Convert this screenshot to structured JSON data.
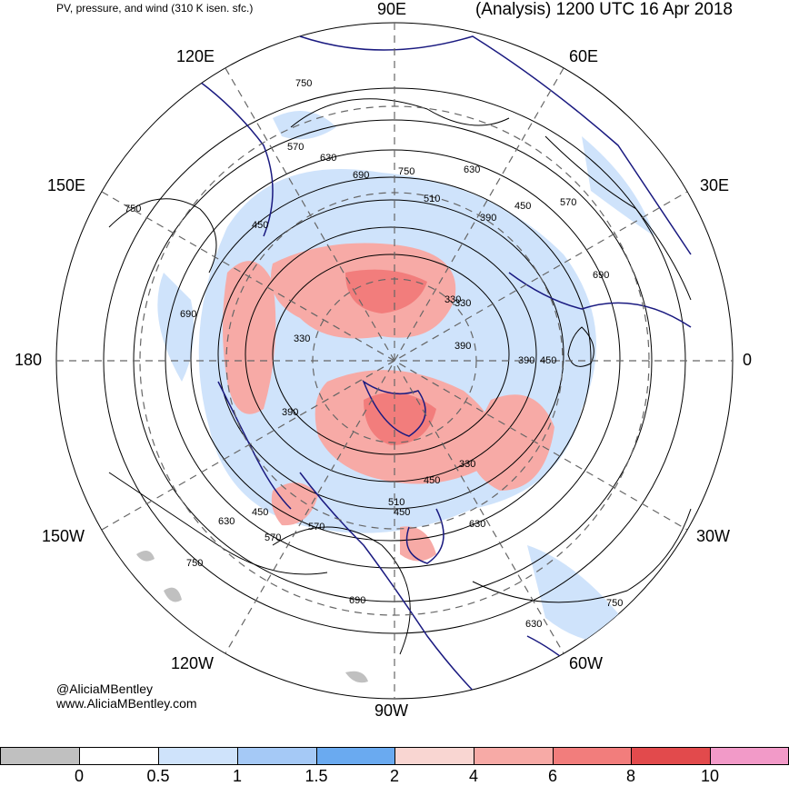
{
  "header": {
    "left_title": "PV, pressure, and wind (310 K isen. sfc.)",
    "right_title": "(Analysis) 1200 UTC 16 Apr 2018"
  },
  "longitude_labels": {
    "top": "90E",
    "top_left": "120E",
    "top_right": "60E",
    "upper_left": "150E",
    "upper_right": "30E",
    "left": "180",
    "right": "0",
    "lower_left": "150W",
    "lower_right": "30W",
    "bottom_left": "120W",
    "bottom_right": "60W",
    "bottom": "90W"
  },
  "pressure_contour_labels": [
    "750",
    "570",
    "630",
    "690",
    "750",
    "630",
    "510",
    "390",
    "450",
    "570",
    "750",
    "450",
    "690",
    "690",
    "330",
    "390",
    "330",
    "450",
    "330",
    "450",
    "390",
    "450",
    "510",
    "630",
    "570",
    "570",
    "630",
    "750",
    "690",
    "630",
    "750",
    "330",
    "390",
    "450"
  ],
  "credits": {
    "handle": "@AliciaMBentley",
    "website": "www.AliciaMBentley.com"
  },
  "colorbar": {
    "ticks": [
      "0",
      "0.5",
      "1",
      "1.5",
      "2",
      "4",
      "6",
      "8",
      "10"
    ],
    "colors": [
      "#c0c0c0",
      "#ffffff",
      "#cfe3fb",
      "#a5c9f6",
      "#6aaaf0",
      "#f9d6d2",
      "#f7aaa6",
      "#f27d7c",
      "#e24a4c",
      "#f29ac8"
    ]
  }
}
